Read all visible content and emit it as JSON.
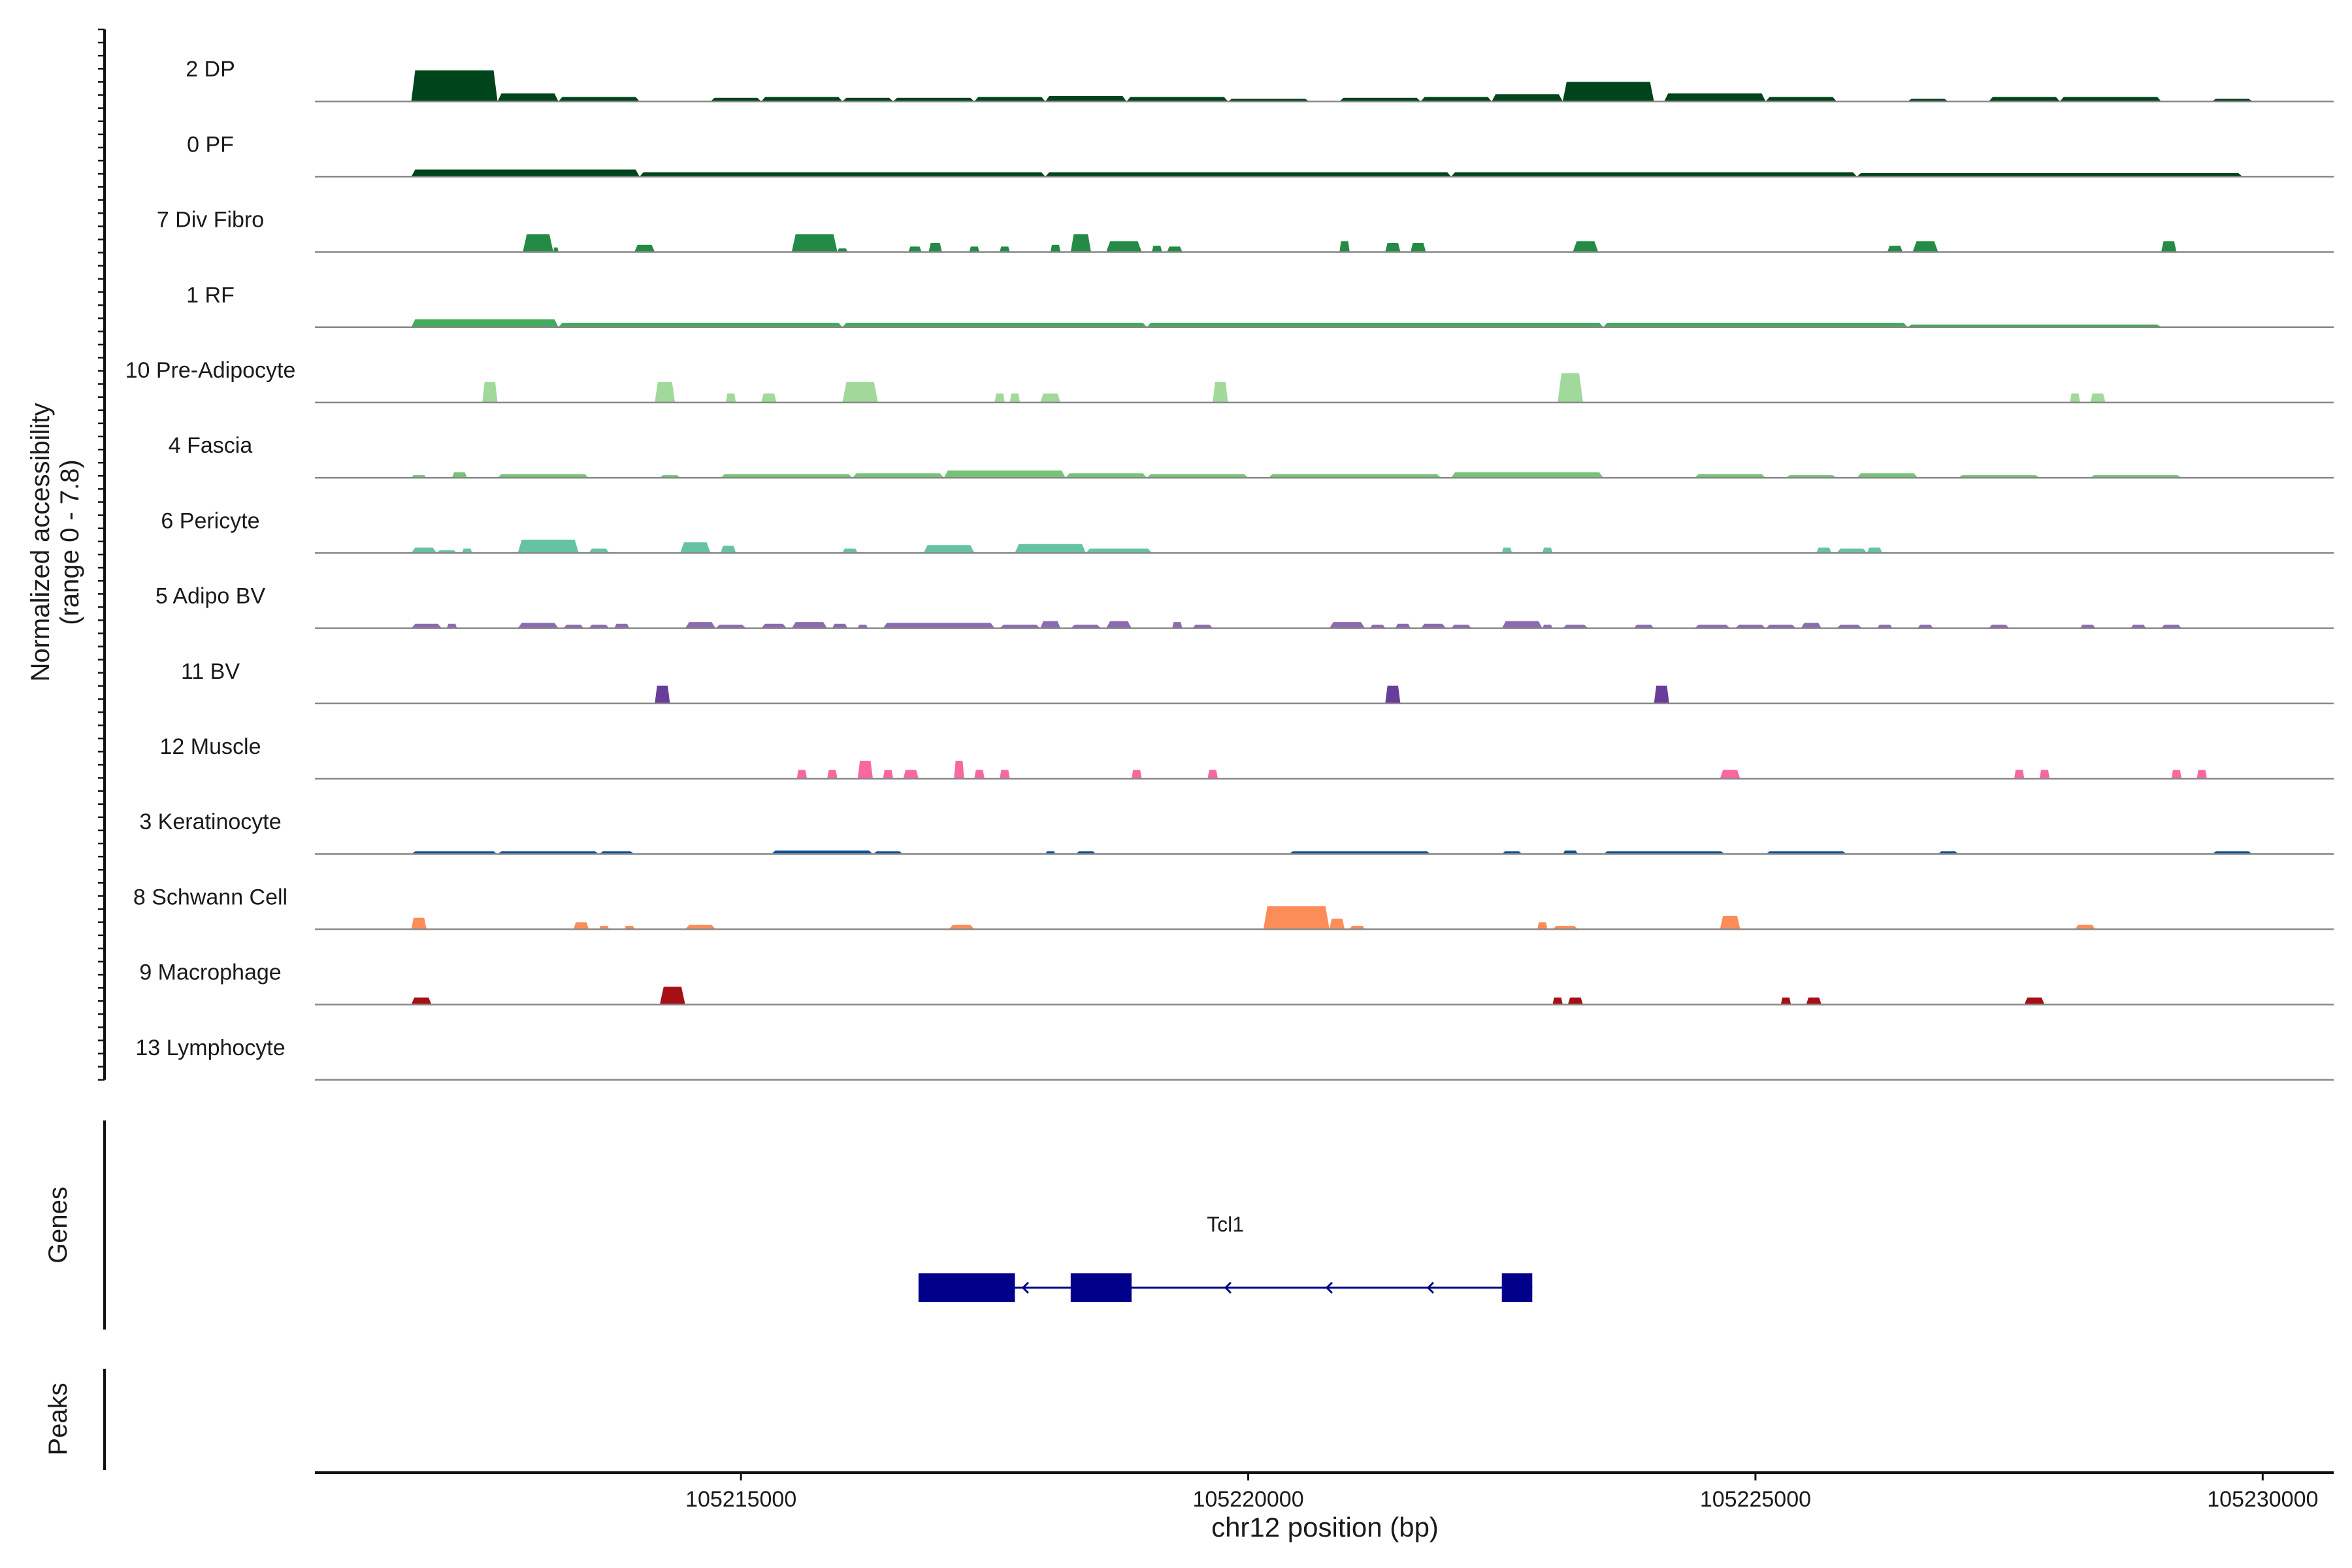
{
  "chart_data": {
    "type": "area",
    "y_axis_label_line1": "Normalized accessibility",
    "y_axis_label_line2": "(range 0 - 7.8)",
    "y_range": [
      0,
      7.8
    ],
    "x_axis_label": "chr12 position (bp)",
    "x_range": [
      105210800,
      105230700
    ],
    "x_ticks": [
      105215000,
      105220000,
      105225000,
      105230000
    ],
    "x_tick_labels": [
      "105215000",
      "105220000",
      "105225000",
      "105230000"
    ],
    "tracks": [
      {
        "name": "2 DP",
        "color": "#00441b",
        "peaks": [
          [
            105211750,
            105212600,
            3.5
          ],
          [
            105212600,
            105213200,
            0.9
          ],
          [
            105213200,
            105214000,
            0.5
          ],
          [
            105214700,
            105215200,
            0.4
          ],
          [
            105215200,
            105216000,
            0.5
          ],
          [
            105216000,
            105216500,
            0.4
          ],
          [
            105216500,
            105217300,
            0.4
          ],
          [
            105217300,
            105218000,
            0.5
          ],
          [
            105218000,
            105218800,
            0.6
          ],
          [
            105218800,
            105219800,
            0.5
          ],
          [
            105219800,
            105220600,
            0.3
          ],
          [
            105220900,
            105221700,
            0.4
          ],
          [
            105221700,
            105222400,
            0.5
          ],
          [
            105222400,
            105223100,
            0.8
          ],
          [
            105223100,
            105224000,
            2.2
          ],
          [
            105224100,
            105225100,
            0.9
          ],
          [
            105225100,
            105225800,
            0.5
          ],
          [
            105226500,
            105226900,
            0.3
          ],
          [
            105227300,
            105228000,
            0.5
          ],
          [
            105228000,
            105229000,
            0.5
          ],
          [
            105229500,
            105229900,
            0.3
          ]
        ]
      },
      {
        "name": "0 PF",
        "color": "#00441b",
        "peaks": [
          [
            105211750,
            105214000,
            0.8
          ],
          [
            105214000,
            105218000,
            0.5
          ],
          [
            105218000,
            105222000,
            0.5
          ],
          [
            105222000,
            105226000,
            0.5
          ],
          [
            105226000,
            105229800,
            0.4
          ]
        ]
      },
      {
        "name": "7 Div Fibro",
        "color": "#238b45",
        "peaks": [
          [
            105212850,
            105213150,
            2.0
          ],
          [
            105213150,
            105213200,
            0.5
          ],
          [
            105213950,
            105214150,
            0.8
          ],
          [
            105215500,
            105215950,
            2.0
          ],
          [
            105215950,
            105216050,
            0.4
          ],
          [
            105216650,
            105216780,
            0.6
          ],
          [
            105216850,
            105216980,
            1.0
          ],
          [
            105217250,
            105217350,
            0.6
          ],
          [
            105217550,
            105217650,
            0.6
          ],
          [
            105218050,
            105218150,
            0.8
          ],
          [
            105218250,
            105218450,
            2.0
          ],
          [
            105218600,
            105218950,
            1.2
          ],
          [
            105219050,
            105219150,
            0.7
          ],
          [
            105219200,
            105219350,
            0.6
          ],
          [
            105220900,
            105221000,
            1.2
          ],
          [
            105221350,
            105221500,
            1.0
          ],
          [
            105221600,
            105221750,
            1.0
          ],
          [
            105223200,
            105223450,
            1.2
          ],
          [
            105226300,
            105226450,
            0.7
          ],
          [
            105226550,
            105226800,
            1.2
          ],
          [
            105229000,
            105229150,
            1.2
          ]
        ]
      },
      {
        "name": "1 RF",
        "color": "#41ab5d",
        "peaks": [
          [
            105211750,
            105213200,
            0.9
          ],
          [
            105213200,
            105216000,
            0.5
          ],
          [
            105216000,
            105219000,
            0.5
          ],
          [
            105219000,
            105223500,
            0.5
          ],
          [
            105223500,
            105226500,
            0.5
          ],
          [
            105226500,
            105229000,
            0.3
          ]
        ]
      },
      {
        "name": "10 Pre-Adipocyte",
        "color": "#a1d99b",
        "peaks": [
          [
            105212450,
            105212600,
            2.3
          ],
          [
            105214150,
            105214350,
            2.3
          ],
          [
            105214850,
            105214950,
            1.0
          ],
          [
            105215200,
            105215350,
            1.0
          ],
          [
            105216000,
            105216350,
            2.3
          ],
          [
            105217500,
            105217600,
            1.0
          ],
          [
            105217650,
            105217750,
            1.0
          ],
          [
            105217950,
            105218150,
            1.0
          ],
          [
            105219650,
            105219800,
            2.3
          ],
          [
            105223050,
            105223300,
            3.3
          ],
          [
            105228100,
            105228200,
            1.0
          ],
          [
            105228300,
            105228450,
            1.0
          ]
        ]
      },
      {
        "name": "4 Fascia",
        "color": "#74c476",
        "peaks": [
          [
            105211750,
            105211900,
            0.3
          ],
          [
            105212150,
            105212300,
            0.6
          ],
          [
            105212600,
            105213500,
            0.4
          ],
          [
            105214200,
            105214400,
            0.3
          ],
          [
            105214800,
            105216100,
            0.4
          ],
          [
            105216100,
            105217000,
            0.5
          ],
          [
            105217000,
            105218200,
            0.8
          ],
          [
            105218200,
            105219000,
            0.5
          ],
          [
            105219000,
            105220000,
            0.4
          ],
          [
            105220200,
            105221900,
            0.4
          ],
          [
            105222000,
            105223500,
            0.6
          ],
          [
            105224400,
            105225100,
            0.4
          ],
          [
            105225300,
            105225800,
            0.3
          ],
          [
            105226000,
            105226600,
            0.5
          ],
          [
            105227000,
            105227800,
            0.3
          ],
          [
            105228300,
            105229200,
            0.3
          ]
        ]
      },
      {
        "name": "6 Pericyte",
        "color": "#66c2a4",
        "peaks": [
          [
            105211750,
            105212000,
            0.6
          ],
          [
            105212000,
            105212200,
            0.3
          ],
          [
            105212250,
            105212350,
            0.5
          ],
          [
            105212800,
            105213400,
            1.5
          ],
          [
            105213500,
            105213700,
            0.5
          ],
          [
            105214400,
            105214700,
            1.2
          ],
          [
            105214800,
            105214950,
            0.8
          ],
          [
            105216000,
            105216150,
            0.5
          ],
          [
            105216800,
            105217300,
            0.9
          ],
          [
            105217700,
            105218400,
            1.0
          ],
          [
            105218400,
            105219050,
            0.5
          ],
          [
            105222500,
            105222600,
            0.6
          ],
          [
            105222900,
            105223000,
            0.6
          ],
          [
            105225600,
            105225750,
            0.6
          ],
          [
            105225800,
            105226100,
            0.5
          ],
          [
            105226100,
            105226250,
            0.6
          ]
        ]
      },
      {
        "name": "5 Adipo BV",
        "color": "#8c6bb1",
        "peaks": [
          [
            105211750,
            105212050,
            0.5
          ],
          [
            105212100,
            105212200,
            0.5
          ],
          [
            105212800,
            105213200,
            0.6
          ],
          [
            105213250,
            105213450,
            0.4
          ],
          [
            105213500,
            105213700,
            0.4
          ],
          [
            105213750,
            105213900,
            0.5
          ],
          [
            105214450,
            105214750,
            0.7
          ],
          [
            105214750,
            105215050,
            0.4
          ],
          [
            105215200,
            105215450,
            0.5
          ],
          [
            105215500,
            105215850,
            0.7
          ],
          [
            105215900,
            105216050,
            0.5
          ],
          [
            105216150,
            105216250,
            0.4
          ],
          [
            105216400,
            105217500,
            0.6
          ],
          [
            105217550,
            105217950,
            0.4
          ],
          [
            105217950,
            105218150,
            0.8
          ],
          [
            105218250,
            105218550,
            0.4
          ],
          [
            105218600,
            105218850,
            0.8
          ],
          [
            105219250,
            105219350,
            0.7
          ],
          [
            105219450,
            105219650,
            0.4
          ],
          [
            105220800,
            105221150,
            0.7
          ],
          [
            105221200,
            105221350,
            0.4
          ],
          [
            105221450,
            105221600,
            0.5
          ],
          [
            105221700,
            105221950,
            0.5
          ],
          [
            105222000,
            105222200,
            0.4
          ],
          [
            105222500,
            105222900,
            0.8
          ],
          [
            105222900,
            105223000,
            0.4
          ],
          [
            105223100,
            105223350,
            0.4
          ],
          [
            105223800,
            105224000,
            0.4
          ],
          [
            105224400,
            105224750,
            0.4
          ],
          [
            105224800,
            105225100,
            0.4
          ],
          [
            105225100,
            105225400,
            0.4
          ],
          [
            105225450,
            105225650,
            0.6
          ],
          [
            105225800,
            105226050,
            0.4
          ],
          [
            105226200,
            105226350,
            0.4
          ],
          [
            105226600,
            105226750,
            0.4
          ],
          [
            105227300,
            105227500,
            0.4
          ],
          [
            105228200,
            105228350,
            0.4
          ],
          [
            105228700,
            105228850,
            0.4
          ],
          [
            105229000,
            105229200,
            0.4
          ]
        ]
      },
      {
        "name": "11 BV",
        "color": "#6a3d9a",
        "peaks": [
          [
            105214150,
            105214300,
            2.0
          ],
          [
            105221350,
            105221500,
            2.0
          ],
          [
            105224000,
            105224150,
            2.0
          ]
        ]
      },
      {
        "name": "12 Muscle",
        "color": "#f768a1",
        "peaks": [
          [
            105215550,
            105215650,
            1.0
          ],
          [
            105215850,
            105215950,
            1.0
          ],
          [
            105216150,
            105216300,
            2.0
          ],
          [
            105216400,
            105216500,
            1.0
          ],
          [
            105216600,
            105216750,
            1.0
          ],
          [
            105217100,
            105217200,
            2.0
          ],
          [
            105217300,
            105217400,
            1.0
          ],
          [
            105217550,
            105217650,
            1.0
          ],
          [
            105218850,
            105218950,
            1.0
          ],
          [
            105219600,
            105219700,
            1.0
          ],
          [
            105224650,
            105224850,
            1.0
          ],
          [
            105227550,
            105227650,
            1.0
          ],
          [
            105227800,
            105227900,
            1.0
          ],
          [
            105229100,
            105229200,
            1.0
          ],
          [
            105229350,
            105229450,
            1.0
          ]
        ]
      },
      {
        "name": "3 Keratinocyte",
        "color": "#08519c",
        "peaks": [
          [
            105211750,
            105212600,
            0.3
          ],
          [
            105212600,
            105213600,
            0.3
          ],
          [
            105213600,
            105213950,
            0.3
          ],
          [
            105215300,
            105216300,
            0.4
          ],
          [
            105216300,
            105216600,
            0.3
          ],
          [
            105218000,
            105218100,
            0.3
          ],
          [
            105218300,
            105218500,
            0.3
          ],
          [
            105220400,
            105221800,
            0.3
          ],
          [
            105222500,
            105222700,
            0.3
          ],
          [
            105223100,
            105223250,
            0.4
          ],
          [
            105223500,
            105224700,
            0.3
          ],
          [
            105225100,
            105225900,
            0.3
          ],
          [
            105226800,
            105227000,
            0.3
          ],
          [
            105229500,
            105229900,
            0.3
          ]
        ]
      },
      {
        "name": "8 Schwann Cell",
        "color": "#fc8d59",
        "peaks": [
          [
            105211750,
            105211900,
            1.3
          ],
          [
            105213350,
            105213500,
            0.8
          ],
          [
            105213600,
            105213700,
            0.4
          ],
          [
            105213850,
            105213950,
            0.4
          ],
          [
            105214450,
            105214750,
            0.5
          ],
          [
            105217050,
            105217300,
            0.5
          ],
          [
            105220150,
            105220800,
            2.6
          ],
          [
            105220800,
            105220950,
            1.2
          ],
          [
            105221000,
            105221150,
            0.4
          ],
          [
            105222850,
            105222950,
            0.8
          ],
          [
            105223000,
            105223250,
            0.4
          ],
          [
            105224650,
            105224850,
            1.5
          ],
          [
            105228150,
            105228350,
            0.5
          ]
        ]
      },
      {
        "name": "9 Macrophage",
        "color": "#a50f15",
        "peaks": [
          [
            105211750,
            105211950,
            0.8
          ],
          [
            105214200,
            105214450,
            2.0
          ],
          [
            105223000,
            105223100,
            0.8
          ],
          [
            105223150,
            105223300,
            0.8
          ],
          [
            105225250,
            105225350,
            0.8
          ],
          [
            105225500,
            105225650,
            0.8
          ],
          [
            105227650,
            105227850,
            0.8
          ]
        ]
      },
      {
        "name": "13 Lymphocyte",
        "color": "#525252",
        "peaks": []
      }
    ],
    "genes_label": "Genes",
    "peaks_label": "Peaks",
    "gene": {
      "name": "Tcl1",
      "start": 105216750,
      "end": 105222800,
      "strand": "-",
      "exons": [
        [
          105216750,
          105217700
        ],
        [
          105218250,
          105218850
        ],
        [
          105222500,
          105222800
        ]
      ],
      "color": "#00008b"
    }
  }
}
